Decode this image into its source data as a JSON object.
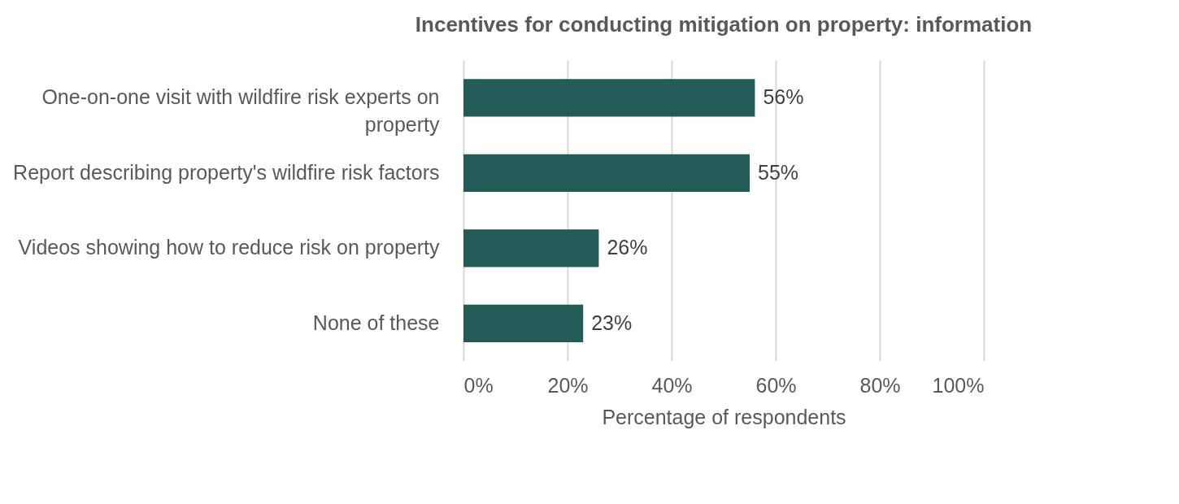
{
  "chart_data": {
    "type": "bar",
    "orientation": "horizontal",
    "title": "Incentives for conducting mitigation on property: information",
    "categories": [
      "One-on-one visit with wildfire risk experts on property",
      "Report describing property's wildfire risk factors",
      "Videos showing how to reduce risk on property",
      "None of these"
    ],
    "values": [
      56,
      55,
      26,
      23
    ],
    "value_labels": [
      "56%",
      "55%",
      "26%",
      "23%"
    ],
    "color": "#235b57",
    "xlabel": "Percentage of respondents",
    "xlim": [
      0,
      100
    ],
    "xticks": [
      {
        "value": 0,
        "label": "0%"
      },
      {
        "value": 20,
        "label": "20%"
      },
      {
        "value": 40,
        "label": "40%"
      },
      {
        "value": 60,
        "label": "60%"
      },
      {
        "value": 80,
        "label": "80%"
      },
      {
        "value": 100,
        "label": "100%"
      }
    ],
    "grid": "x"
  }
}
